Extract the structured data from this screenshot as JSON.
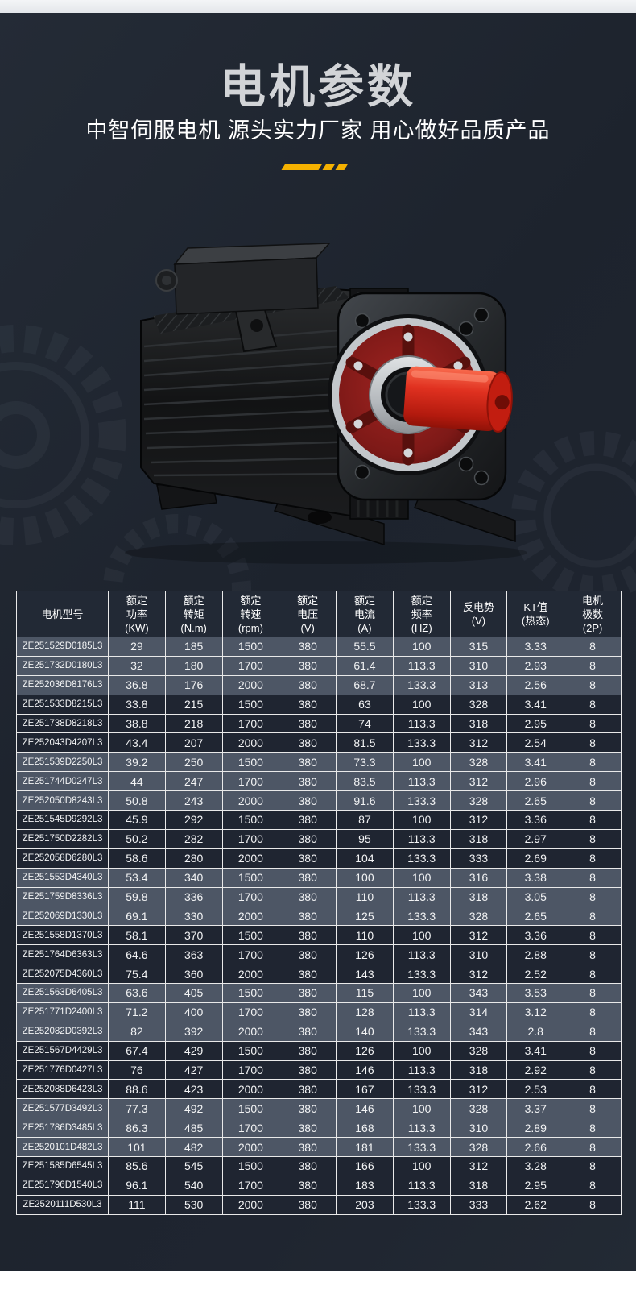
{
  "page": {
    "title": "电机参数",
    "subtitle": "中智伺服电机 源头实力厂家 用心做好品质产品"
  },
  "hero": {
    "image_name": "servo-motor-photo",
    "decoration": "yellow-slash-bars"
  },
  "colors": {
    "background": "#1F2530",
    "top_strip": "#EAECEF",
    "bottom_strip": "#FFFFFF",
    "title_text": "#D2D4D7",
    "subtitle_text": "#FFFFFF",
    "accent_yellow": "#F5B100",
    "table_border": "#E9E9E9",
    "row_light": "#4D5665",
    "row_dark": "#1F2531",
    "header_bg": "#222935",
    "shaft_red": "#D72414",
    "flange_red": "#8A1E1C"
  },
  "table": {
    "headers": [
      [
        "电机型号"
      ],
      [
        "额定",
        "功率",
        "(KW)"
      ],
      [
        "额定",
        "转矩",
        "(N.m)"
      ],
      [
        "额定",
        "转速",
        "(rpm)"
      ],
      [
        "额定",
        "电压",
        "(V)"
      ],
      [
        "额定",
        "电流",
        "(A)"
      ],
      [
        "额定",
        "频率",
        "(HZ)"
      ],
      [
        "反电势",
        "(V)"
      ],
      [
        "KT值",
        "(热态)"
      ],
      [
        "电机",
        "极数",
        "(2P)"
      ]
    ],
    "rows": [
      [
        "ZE251529D0185L3",
        "29",
        "185",
        "1500",
        "380",
        "55.5",
        "100",
        "315",
        "3.33",
        "8"
      ],
      [
        "ZE251732D0180L3",
        "32",
        "180",
        "1700",
        "380",
        "61.4",
        "113.3",
        "310",
        "2.93",
        "8"
      ],
      [
        "ZE252036D8176L3",
        "36.8",
        "176",
        "2000",
        "380",
        "68.7",
        "133.3",
        "313",
        "2.56",
        "8"
      ],
      [
        "ZE251533D8215L3",
        "33.8",
        "215",
        "1500",
        "380",
        "63",
        "100",
        "328",
        "3.41",
        "8"
      ],
      [
        "ZE251738D8218L3",
        "38.8",
        "218",
        "1700",
        "380",
        "74",
        "113.3",
        "318",
        "2.95",
        "8"
      ],
      [
        "ZE252043D4207L3",
        "43.4",
        "207",
        "2000",
        "380",
        "81.5",
        "133.3",
        "312",
        "2.54",
        "8"
      ],
      [
        "ZE251539D2250L3",
        "39.2",
        "250",
        "1500",
        "380",
        "73.3",
        "100",
        "328",
        "3.41",
        "8"
      ],
      [
        "ZE251744D0247L3",
        "44",
        "247",
        "1700",
        "380",
        "83.5",
        "113.3",
        "312",
        "2.96",
        "8"
      ],
      [
        "ZE252050D8243L3",
        "50.8",
        "243",
        "2000",
        "380",
        "91.6",
        "133.3",
        "328",
        "2.65",
        "8"
      ],
      [
        "ZE251545D9292L3",
        "45.9",
        "292",
        "1500",
        "380",
        "87",
        "100",
        "312",
        "3.36",
        "8"
      ],
      [
        "ZE251750D2282L3",
        "50.2",
        "282",
        "1700",
        "380",
        "95",
        "113.3",
        "318",
        "2.97",
        "8"
      ],
      [
        "ZE252058D6280L3",
        "58.6",
        "280",
        "2000",
        "380",
        "104",
        "133.3",
        "333",
        "2.69",
        "8"
      ],
      [
        "ZE251553D4340L3",
        "53.4",
        "340",
        "1500",
        "380",
        "100",
        "100",
        "316",
        "3.38",
        "8"
      ],
      [
        "ZE251759D8336L3",
        "59.8",
        "336",
        "1700",
        "380",
        "110",
        "113.3",
        "318",
        "3.05",
        "8"
      ],
      [
        "ZE252069D1330L3",
        "69.1",
        "330",
        "2000",
        "380",
        "125",
        "133.3",
        "328",
        "2.65",
        "8"
      ],
      [
        "ZE251558D1370L3",
        "58.1",
        "370",
        "1500",
        "380",
        "110",
        "100",
        "312",
        "3.36",
        "8"
      ],
      [
        "ZE251764D6363L3",
        "64.6",
        "363",
        "1700",
        "380",
        "126",
        "113.3",
        "310",
        "2.88",
        "8"
      ],
      [
        "ZE252075D4360L3",
        "75.4",
        "360",
        "2000",
        "380",
        "143",
        "133.3",
        "312",
        "2.52",
        "8"
      ],
      [
        "ZE251563D6405L3",
        "63.6",
        "405",
        "1500",
        "380",
        "115",
        "100",
        "343",
        "3.53",
        "8"
      ],
      [
        "ZE251771D2400L3",
        "71.2",
        "400",
        "1700",
        "380",
        "128",
        "113.3",
        "314",
        "3.12",
        "8"
      ],
      [
        "ZE252082D0392L3",
        "82",
        "392",
        "2000",
        "380",
        "140",
        "133.3",
        "343",
        "2.8",
        "8"
      ],
      [
        "ZE251567D4429L3",
        "67.4",
        "429",
        "1500",
        "380",
        "126",
        "100",
        "328",
        "3.41",
        "8"
      ],
      [
        "ZE251776D0427L3",
        "76",
        "427",
        "1700",
        "380",
        "146",
        "113.3",
        "318",
        "2.92",
        "8"
      ],
      [
        "ZE252088D6423L3",
        "88.6",
        "423",
        "2000",
        "380",
        "167",
        "133.3",
        "312",
        "2.53",
        "8"
      ],
      [
        "ZE251577D3492L3",
        "77.3",
        "492",
        "1500",
        "380",
        "146",
        "100",
        "328",
        "3.37",
        "8"
      ],
      [
        "ZE251786D3485L3",
        "86.3",
        "485",
        "1700",
        "380",
        "168",
        "113.3",
        "310",
        "2.89",
        "8"
      ],
      [
        "ZE2520101D482L3",
        "101",
        "482",
        "2000",
        "380",
        "181",
        "133.3",
        "328",
        "2.66",
        "8"
      ],
      [
        "ZE251585D6545L3",
        "85.6",
        "545",
        "1500",
        "380",
        "166",
        "100",
        "312",
        "3.28",
        "8"
      ],
      [
        "ZE251796D1540L3",
        "96.1",
        "540",
        "1700",
        "380",
        "183",
        "113.3",
        "318",
        "2.95",
        "8"
      ],
      [
        "ZE2520111D530L3",
        "111",
        "530",
        "2000",
        "380",
        "203",
        "133.3",
        "333",
        "2.62",
        "8"
      ]
    ]
  }
}
